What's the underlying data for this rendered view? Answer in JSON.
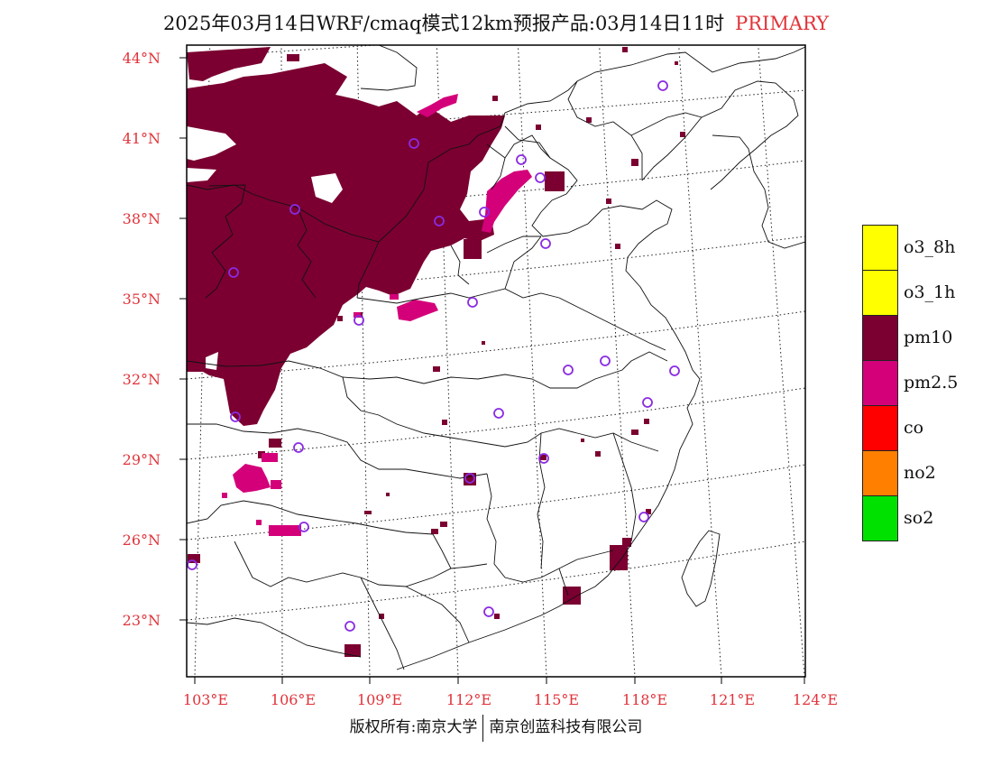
{
  "title": {
    "main": "2025年03月14日WRF/cmaq模式12km预报产品:03月14日11时",
    "tag": "PRIMARY"
  },
  "axes": {
    "lat_labels": [
      "44°N",
      "41°N",
      "38°N",
      "35°N",
      "32°N",
      "29°N",
      "26°N",
      "23°N"
    ],
    "lon_labels": [
      "103°E",
      "106°E",
      "109°E",
      "112°E",
      "115°E",
      "118°E",
      "121°E",
      "124°E"
    ]
  },
  "legend": [
    {
      "label": "o3_8h",
      "color": "#ffff00"
    },
    {
      "label": "o3_1h",
      "color": "#ffff00"
    },
    {
      "label": "pm10",
      "color": "#7b0031"
    },
    {
      "label": "pm2.5",
      "color": "#d4007a"
    },
    {
      "label": "co",
      "color": "#ff0000"
    },
    {
      "label": "no2",
      "color": "#ff7f00"
    },
    {
      "label": "so2",
      "color": "#00e100"
    }
  ],
  "footer": {
    "left": "版权所有:南京大学",
    "right": "南京创蓝科技有限公司"
  },
  "colors": {
    "pm10": "#7b0031",
    "pm25": "#d4007a",
    "station_marker": "#8a2be2",
    "axis_label": "#e0333a"
  }
}
